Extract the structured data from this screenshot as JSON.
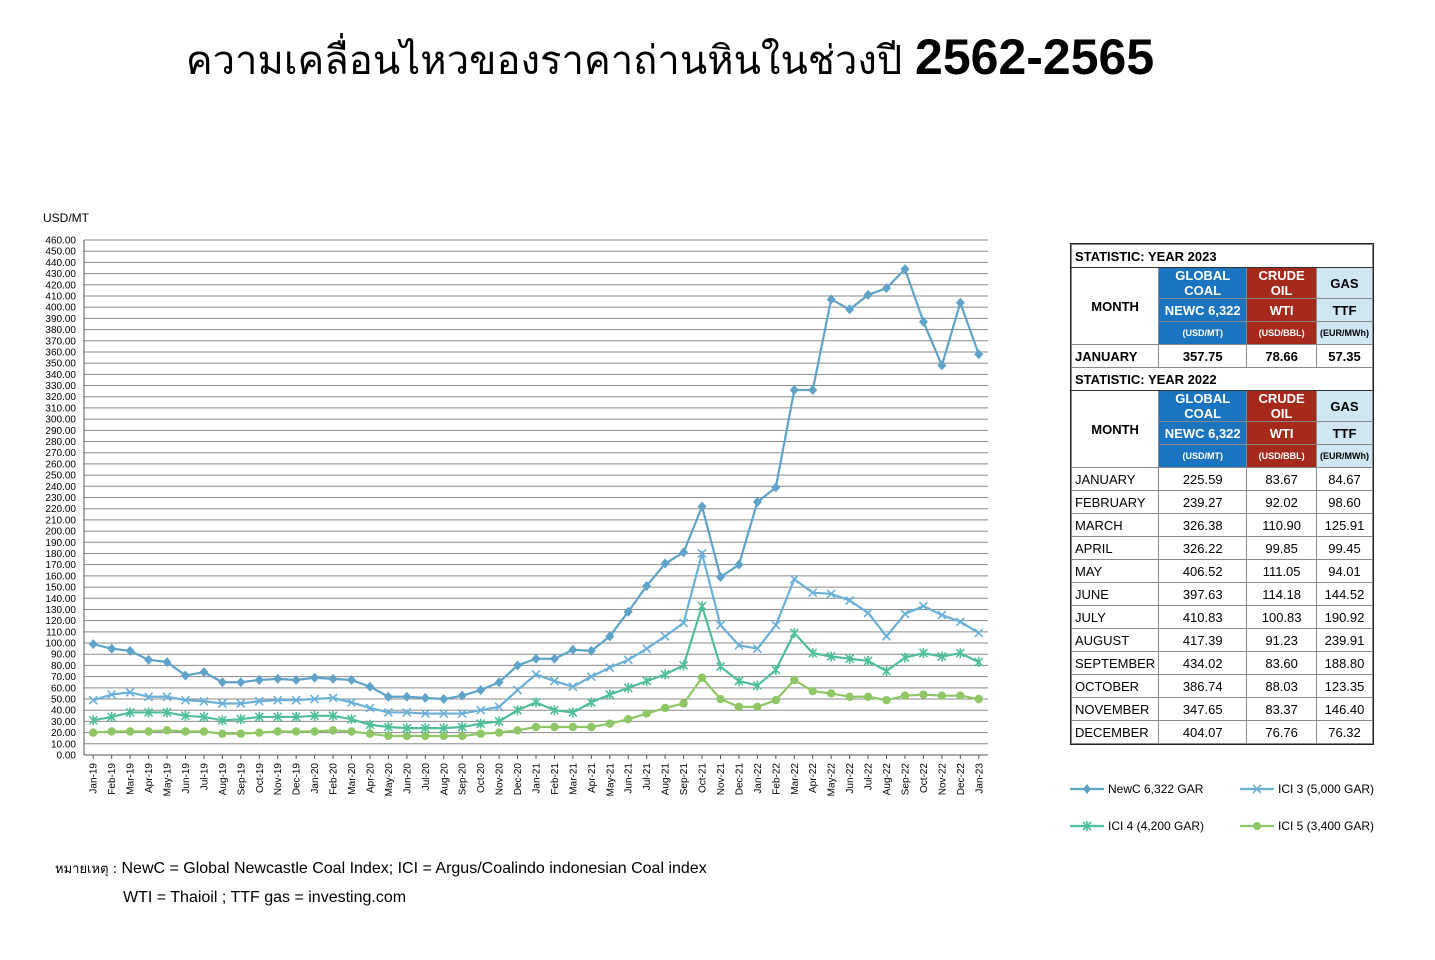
{
  "title_text": "ความเคลื่อนไหวของราคาถ่านหินในช่วงปี",
  "title_years": "2562-2565",
  "chart_data": {
    "type": "line",
    "ylabel": "USD/MT",
    "ylim": [
      0,
      460
    ],
    "ytick_step": 10,
    "grid": true,
    "categories": [
      "Jan-19",
      "Feb-19",
      "Mar-19",
      "Apr-19",
      "May-19",
      "Jun-19",
      "Jul-19",
      "Aug-19",
      "Sep-19",
      "Oct-19",
      "Nov-19",
      "Dec-19",
      "Jan-20",
      "Feb-20",
      "Mar-20",
      "Apr-20",
      "May-20",
      "Jun-20",
      "Jul-20",
      "Aug-20",
      "Sep-20",
      "Oct-20",
      "Nov-20",
      "Dec-20",
      "Jan-21",
      "Feb-21",
      "Mar-21",
      "Apr-21",
      "May-21",
      "Jun-21",
      "Jul-21",
      "Aug-21",
      "Sep-21",
      "Oct-21",
      "Nov-21",
      "Dec-21",
      "Jan-22",
      "Feb-22",
      "Mar-22",
      "Apr-22",
      "May-22",
      "Jun-22",
      "Jul-22",
      "Aug-22",
      "Sep-22",
      "Oct-22",
      "Nov-22",
      "Dec-22",
      "Jan-23"
    ],
    "series": [
      {
        "name": "NewC 6,322 GAR",
        "color": "#5fa3c9",
        "marker": "diamond",
        "values": [
          99,
          95,
          93,
          85,
          83,
          71,
          74,
          65,
          65,
          67,
          68,
          67,
          69,
          68,
          67,
          61,
          52,
          52,
          51,
          50,
          53,
          58,
          65,
          80,
          86,
          86,
          94,
          93,
          106,
          128,
          151,
          171,
          181,
          222,
          159,
          170,
          226,
          239,
          326,
          326,
          407,
          398,
          411,
          417,
          434,
          387,
          348,
          404,
          358
        ]
      },
      {
        "name": "ICI 3 (5,000 GAR)",
        "color": "#6ab0d8",
        "marker": "x",
        "values": [
          49,
          54,
          56,
          52,
          52,
          49,
          48,
          46,
          46,
          48,
          49,
          49,
          50,
          51,
          47,
          42,
          38,
          38,
          37,
          37,
          37,
          40,
          43,
          58,
          72,
          66,
          61,
          70,
          78,
          85,
          95,
          106,
          118,
          180,
          116,
          98,
          95,
          116,
          157,
          145,
          144,
          138,
          127,
          106,
          126,
          133,
          125,
          119,
          109
        ]
      },
      {
        "name": "ICI 4 (4,200 GAR)",
        "color": "#4fbf98",
        "marker": "star",
        "values": [
          31,
          34,
          38,
          38,
          38,
          35,
          34,
          31,
          32,
          34,
          34,
          34,
          35,
          35,
          32,
          27,
          25,
          24,
          24,
          24,
          25,
          28,
          30,
          40,
          47,
          40,
          38,
          47,
          54,
          60,
          66,
          72,
          80,
          133,
          79,
          66,
          62,
          76,
          109,
          91,
          88,
          86,
          84,
          75,
          87,
          91,
          88,
          91,
          83
        ]
      },
      {
        "name": "ICI 5 (3,400 GAR)",
        "color": "#8fc766",
        "marker": "circle",
        "values": [
          20,
          21,
          21,
          21,
          22,
          21,
          21,
          19,
          19,
          20,
          21,
          21,
          21,
          22,
          21,
          19,
          17,
          17,
          17,
          17,
          17,
          19,
          20,
          22,
          25,
          25,
          25,
          25,
          28,
          32,
          37,
          42,
          46,
          69,
          50,
          43,
          43,
          49,
          67,
          57,
          55,
          52,
          52,
          49,
          53,
          54,
          53,
          53,
          50
        ]
      }
    ]
  },
  "stat2023": {
    "title": "STATISTIC: YEAR 2023",
    "h_coal": "GLOBAL COAL",
    "h_oil": "CRUDE OIL",
    "h_gas": "GAS",
    "h_month": "MONTH",
    "s_coal": "NEWC 6,322",
    "s_oil": "WTI",
    "s_gas": "TTF",
    "u_coal": "(USD/MT)",
    "u_oil": "(USD/BBL)",
    "u_gas": "(EUR/MWh)",
    "rows": [
      {
        "month": "JANUARY",
        "coal": "357.75",
        "oil": "78.66",
        "gas": "57.35"
      }
    ]
  },
  "stat2022": {
    "title": "STATISTIC: YEAR 2022",
    "h_coal": "GLOBAL COAL",
    "h_oil": "CRUDE OIL",
    "h_gas": "GAS",
    "h_month": "MONTH",
    "s_coal": "NEWC 6,322",
    "s_oil": "WTI",
    "s_gas": "TTF",
    "u_coal": "(USD/MT)",
    "u_oil": "(USD/BBL)",
    "u_gas": "(EUR/MWh)",
    "rows": [
      {
        "month": "JANUARY",
        "coal": "225.59",
        "oil": "83.67",
        "gas": "84.67"
      },
      {
        "month": "FEBRUARY",
        "coal": "239.27",
        "oil": "92.02",
        "gas": "98.60"
      },
      {
        "month": "MARCH",
        "coal": "326.38",
        "oil": "110.90",
        "gas": "125.91"
      },
      {
        "month": "APRIL",
        "coal": "326.22",
        "oil": "99.85",
        "gas": "99.45"
      },
      {
        "month": "MAY",
        "coal": "406.52",
        "oil": "111.05",
        "gas": "94.01"
      },
      {
        "month": "JUNE",
        "coal": "397.63",
        "oil": "114.18",
        "gas": "144.52"
      },
      {
        "month": "JULY",
        "coal": "410.83",
        "oil": "100.83",
        "gas": "190.92"
      },
      {
        "month": "AUGUST",
        "coal": "417.39",
        "oil": "91.23",
        "gas": "239.91"
      },
      {
        "month": "SEPTEMBER",
        "coal": "434.02",
        "oil": "83.60",
        "gas": "188.80"
      },
      {
        "month": "OCTOBER",
        "coal": "386.74",
        "oil": "88.03",
        "gas": "123.35"
      },
      {
        "month": "NOVEMBER",
        "coal": "347.65",
        "oil": "83.37",
        "gas": "146.40"
      },
      {
        "month": "DECEMBER",
        "coal": "404.07",
        "oil": "76.76",
        "gas": "76.32"
      }
    ]
  },
  "note": {
    "label": "หมายเหตุ :",
    "line1": "NewC = Global Newcastle Coal Index; ICI = Argus/Coalindo indonesian Coal index",
    "line2": "WTI = Thaioil ; TTF gas = investing.com"
  }
}
